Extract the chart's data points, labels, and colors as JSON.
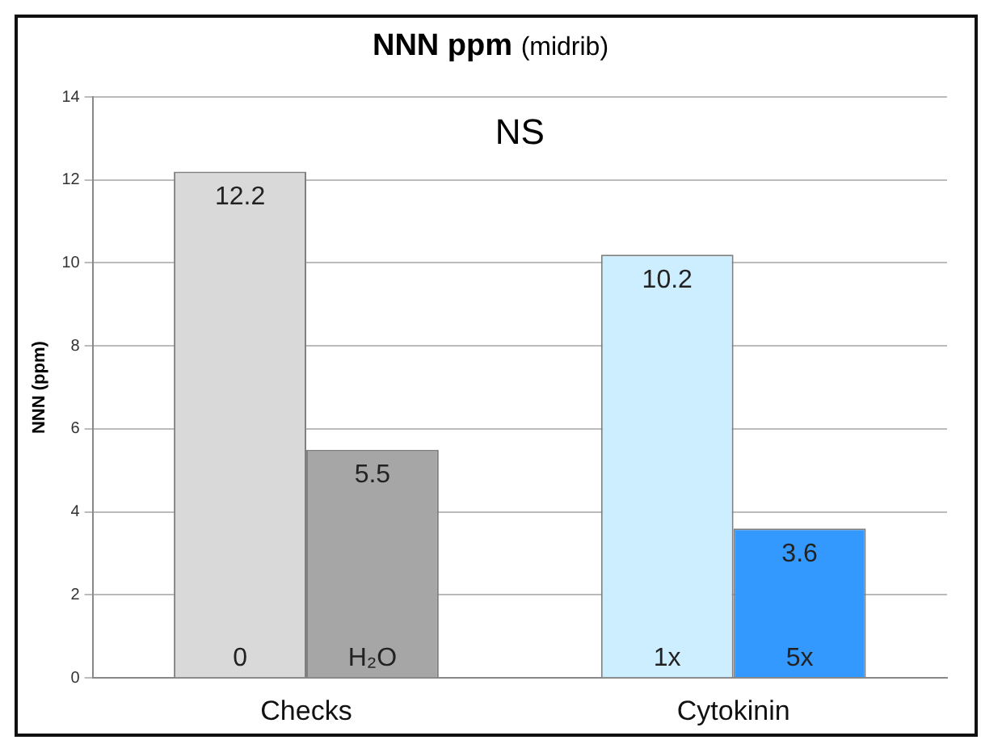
{
  "chart_data": {
    "type": "bar",
    "title": "NNN ppm",
    "subtitle": "(midrib)",
    "ylabel": "NNN (ppm)",
    "categories": [
      "Checks",
      "Cytokinin"
    ],
    "series": [
      {
        "colors": [
          "#d9d9d9",
          "#cceeff"
        ],
        "values": [
          12.2,
          10.2
        ]
      },
      {
        "colors": [
          "#a6a6a6",
          "#3399ff"
        ],
        "values": [
          5.5,
          3.6
        ]
      }
    ],
    "ylim": [
      0,
      14
    ],
    "yticks": [
      0,
      2,
      4,
      6,
      8,
      10,
      12,
      14
    ],
    "grid": "y",
    "data_labels": true,
    "annotations": [
      "NS",
      {
        "text": "0",
        "x": "Checks",
        "y": 0
      },
      {
        "text": "H₂O",
        "x": "Checks",
        "y": 0
      },
      {
        "text": "1x",
        "x": "Cytokinin",
        "y": 0
      },
      {
        "text": "5x",
        "x": "Cytokinin",
        "y": 0
      }
    ]
  }
}
